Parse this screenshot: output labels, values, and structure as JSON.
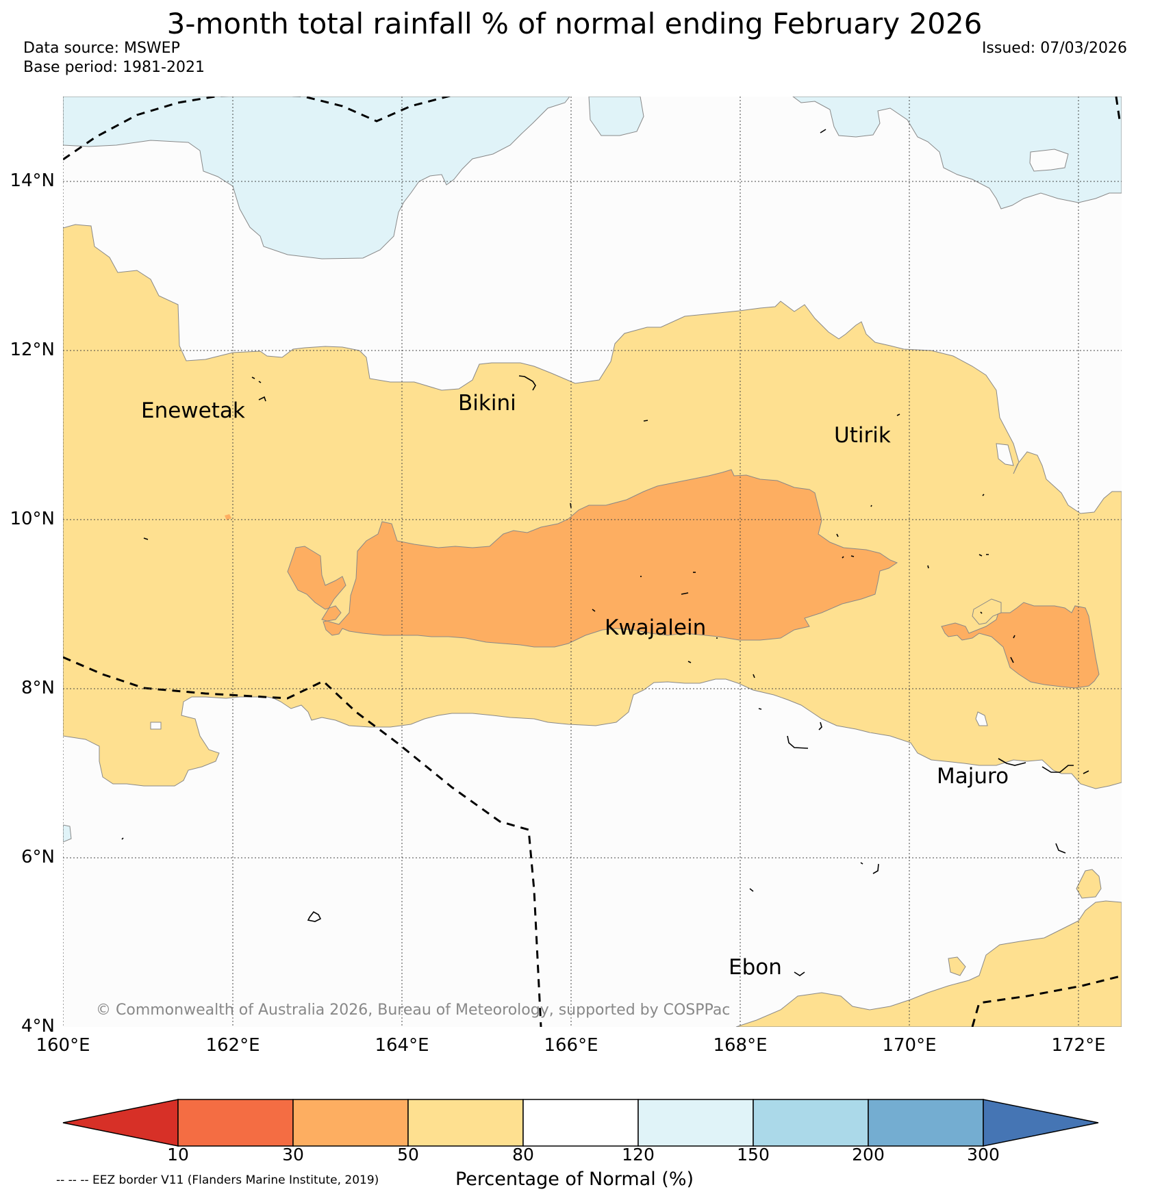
{
  "title": "3-month total rainfall % of normal ending February 2026",
  "data_source": "Data source: MSWEP",
  "base_period": "Base period: 1981-2021",
  "issued": "Issued: 07/03/2026",
  "map": {
    "lon_range": [
      160,
      172.5
    ],
    "lat_range": [
      4,
      15
    ],
    "lat_ticks": [
      "14°N",
      "12°N",
      "10°N",
      "8°N",
      "6°N",
      "4°N"
    ],
    "lon_ticks": [
      "160°E",
      "162°E",
      "164°E",
      "166°E",
      "168°E",
      "170°E",
      "172°E"
    ],
    "places": [
      "Enewetak",
      "Bikini",
      "Utirik",
      "Kwajalein",
      "Majuro",
      "Ebon"
    ],
    "copyright": "© Commonwealth of Australia 2026, Bureau of Meteorology, supported by COSPPac",
    "eez_note": "-- -- -- EEZ border V11 (Flanders Marine Institute, 2019)"
  },
  "colorbar": {
    "label": "Percentage of Normal (%)",
    "ticks": [
      "10",
      "30",
      "50",
      "80",
      "120",
      "150",
      "200",
      "300"
    ],
    "colors": [
      "#d73027",
      "#f46d43",
      "#fdae61",
      "#fee090",
      "#ffffff",
      "#e0f3f8",
      "#abd9e9",
      "#74add1",
      "#4575b4"
    ]
  },
  "legend_colors": {
    "below_50": "#fdae61",
    "50_to_80": "#fee090",
    "80_to_120": "#ffffff",
    "120_to_150": "#e0f3f8"
  }
}
